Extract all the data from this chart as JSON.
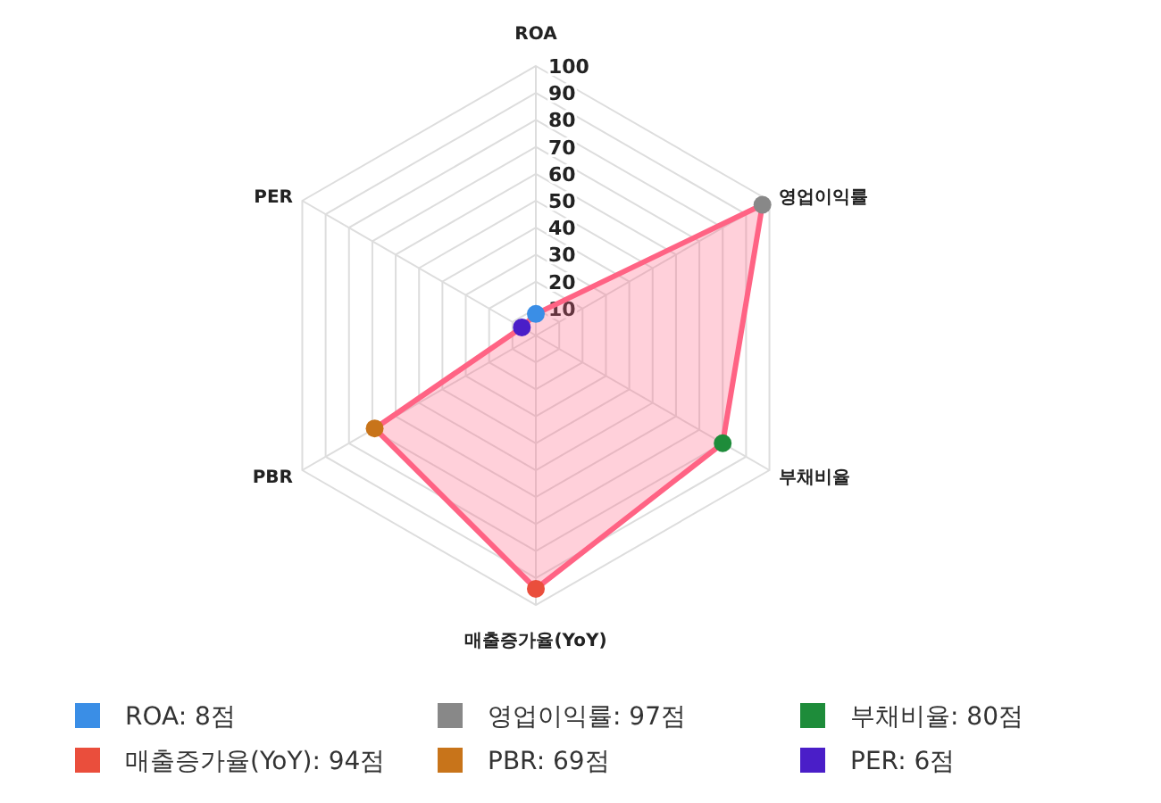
{
  "chart_data": {
    "type": "radar",
    "categories": [
      "ROA",
      "영업이익률",
      "부채비율",
      "매출증가율(YoY)",
      "PBR",
      "PER"
    ],
    "series": [
      {
        "color": "#ff6384",
        "values": [
          8,
          97,
          80,
          94,
          69,
          6
        ],
        "colors": [
          "#3a8ee6",
          "#888888",
          "#1e8c3a",
          "#ea4e3c",
          "#c8741a",
          "#4a1ec8"
        ]
      }
    ],
    "annotations": [
      "ROA: 8점",
      "영업이익률: 97점",
      "부채비율: 80점",
      "매출증가율(YoY): 94점",
      "PBR: 69점",
      "PER: 6점"
    ],
    "ylim": [
      0,
      100
    ],
    "yticks": [
      10,
      20,
      30,
      40,
      50,
      60,
      70,
      80,
      90,
      100
    ],
    "grid": true,
    "marker": "circle",
    "line_style": "solid"
  }
}
